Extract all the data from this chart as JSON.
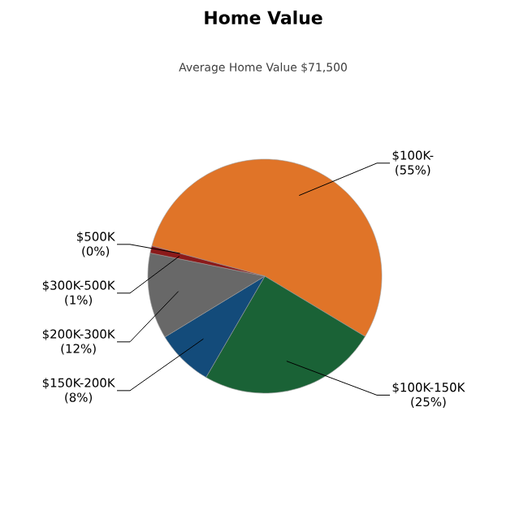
{
  "chart_data": {
    "type": "pie",
    "title": "Home Value",
    "subtitle": "Average Home Value  $71,500",
    "categories": [
      "$100K-",
      "$100K-150K",
      "$150K-200K",
      "$200K-300K",
      "$300K-500K",
      "$500K"
    ],
    "values": [
      55,
      25,
      8,
      12,
      1,
      0
    ],
    "value_labels": [
      "(55%)",
      "(25%)",
      "(8%)",
      "(12%)",
      "(1%)",
      "(0%)"
    ],
    "colors": [
      "#e07428",
      "#1a6236",
      "#134b7a",
      "#686868",
      "#8b1a1a",
      "#b02020"
    ]
  }
}
